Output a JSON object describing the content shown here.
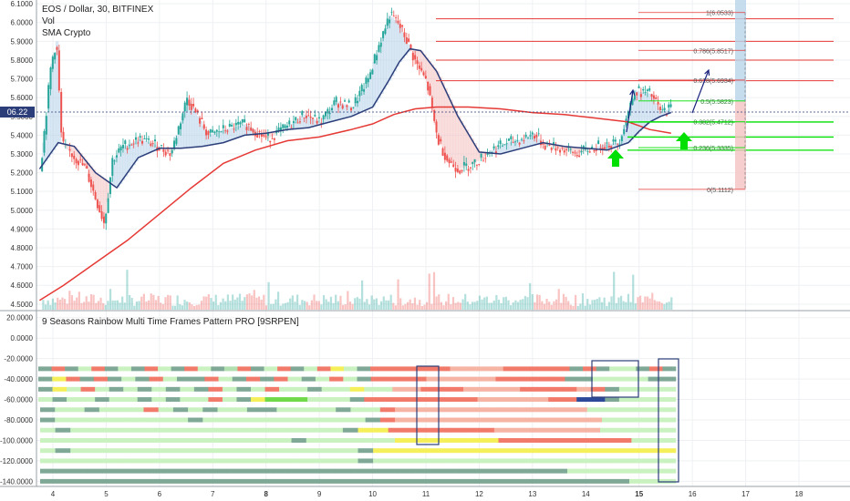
{
  "legend": {
    "symbol": "EOS / Dollar, 30, BITFINEX",
    "vol": "Vol",
    "sma": "SMA Crypto"
  },
  "indicator": {
    "title": "9 Seasons Rainbow Multi Time Frames Pattern PRO [9SRPEN]"
  },
  "price_tag": "06.22",
  "colors": {
    "up": "#26a69a",
    "down": "#ef5350",
    "sma_fast": "#2c3e7a",
    "sma_slow": "#e53935",
    "fib": "#e53935",
    "fib_green": "#00e000",
    "arrow_green": "#00e000",
    "arrow_navy": "#1a237e",
    "band_blue": "#b8d4ea",
    "band_pink": "#f4c2c2"
  },
  "chart_data": [
    {
      "type": "candlestick",
      "title": "EOS / Dollar, 30, BITFINEX",
      "x_ticks": [
        "4",
        "5",
        "6",
        "7",
        "8",
        "9",
        "10",
        "11",
        "12",
        "13",
        "14",
        "15",
        "16",
        "17",
        "18"
      ],
      "y_ticks": [
        "6.1000",
        "6.0000",
        "5.9000",
        "5.8000",
        "5.7000",
        "5.6000",
        "5.5000",
        "5.4000",
        "5.3000",
        "5.2000",
        "5.1000",
        "5.0000",
        "4.9000",
        "4.8000",
        "4.7000",
        "4.6000",
        "4.5000"
      ],
      "ylim": [
        4.47,
        6.12
      ],
      "xlim": [
        3.75,
        18.6
      ],
      "series": [
        {
          "name": "",
          "kind": "close",
          "x": [
            3.75,
            3.95,
            4.05,
            4.15,
            4.3,
            4.6,
            4.8,
            4.95,
            5.1,
            5.3,
            5.6,
            5.9,
            6.2,
            6.5,
            6.9,
            7.2,
            7.6,
            8.0,
            8.3,
            8.7,
            9.0,
            9.3,
            9.6,
            9.9,
            10.1,
            10.3,
            10.45,
            10.6,
            10.8,
            11.0,
            11.2,
            11.4,
            11.6,
            11.9,
            12.2,
            12.5,
            12.8,
            13.0,
            13.2,
            13.5,
            13.8,
            14.0,
            14.3,
            14.6,
            14.9,
            15.0,
            15.2,
            15.4,
            15.6
          ],
          "y": [
            5.22,
            5.78,
            5.9,
            5.35,
            5.31,
            5.22,
            5.05,
            4.93,
            5.27,
            5.34,
            5.38,
            5.35,
            5.3,
            5.6,
            5.4,
            5.43,
            5.46,
            5.38,
            5.43,
            5.51,
            5.47,
            5.58,
            5.55,
            5.7,
            5.88,
            6.04,
            6.0,
            5.92,
            5.78,
            5.68,
            5.38,
            5.26,
            5.22,
            5.25,
            5.32,
            5.36,
            5.38,
            5.41,
            5.35,
            5.33,
            5.3,
            5.32,
            5.35,
            5.36,
            5.64,
            5.63,
            5.62,
            5.52,
            5.55
          ]
        },
        {
          "name": "",
          "kind": "sma_fast",
          "x": [
            3.75,
            4.1,
            4.4,
            4.8,
            5.2,
            5.6,
            6.0,
            6.4,
            6.8,
            7.2,
            7.6,
            8.0,
            8.4,
            8.8,
            9.2,
            9.6,
            10.0,
            10.3,
            10.5,
            10.7,
            10.9,
            11.2,
            11.6,
            12.0,
            12.4,
            12.8,
            13.2,
            13.6,
            14.0,
            14.4,
            14.8,
            15.0,
            15.2,
            15.4,
            15.6
          ],
          "y": [
            5.22,
            5.36,
            5.34,
            5.2,
            5.12,
            5.28,
            5.33,
            5.33,
            5.34,
            5.36,
            5.4,
            5.41,
            5.43,
            5.44,
            5.47,
            5.5,
            5.55,
            5.69,
            5.79,
            5.86,
            5.85,
            5.74,
            5.5,
            5.31,
            5.3,
            5.33,
            5.36,
            5.34,
            5.33,
            5.32,
            5.36,
            5.42,
            5.47,
            5.5,
            5.52
          ]
        },
        {
          "name": "",
          "kind": "sma_slow",
          "x": [
            3.75,
            4.2,
            4.8,
            5.4,
            6.0,
            6.6,
            7.2,
            7.8,
            8.4,
            9.0,
            9.6,
            10.0,
            10.4,
            10.8,
            11.2,
            11.8,
            12.4,
            13.0,
            13.6,
            14.2,
            14.8,
            15.2,
            15.6
          ],
          "y": [
            4.52,
            4.6,
            4.72,
            4.84,
            4.98,
            5.12,
            5.25,
            5.32,
            5.37,
            5.39,
            5.43,
            5.46,
            5.51,
            5.54,
            5.55,
            5.55,
            5.54,
            5.52,
            5.51,
            5.49,
            5.47,
            5.43,
            5.41
          ]
        }
      ],
      "fib_levels": [
        {
          "label": "1(6.0533)",
          "value": 6.0533
        },
        {
          "label": "0.786(5.8517)",
          "value": 5.8517
        },
        {
          "label": "0.618(5.6934)",
          "value": 5.6934
        },
        {
          "label": "0.5(5.5823)",
          "value": 5.5823
        },
        {
          "label": "0.382(5.4712)",
          "value": 5.4712
        },
        {
          "label": "0.236(5.3335)",
          "value": 5.3335
        },
        {
          "label": "0(5.1112)",
          "value": 5.1112
        }
      ],
      "hlines_red": [
        6.02,
        5.9,
        5.8,
        5.69
      ],
      "hlines_green": [
        5.47,
        5.39,
        5.32
      ]
    },
    {
      "type": "heatmap",
      "title": "9 Seasons Rainbow Multi Time Frames Pattern PRO [9SRPEN]",
      "y_ticks": [
        "20.0000",
        "0.0000",
        "-20.0000",
        "-40.0000",
        "-60.0000",
        "-80.0000",
        "-100.0000",
        "-120.0000",
        "-140.0000"
      ],
      "ylim": [
        -145,
        26
      ],
      "rows": [
        -30,
        -40,
        -50,
        -60,
        -70,
        -80,
        -90,
        -100,
        -110,
        -120,
        -130,
        -140
      ],
      "palette": {
        "G": "#7fa897",
        "L": "#c9f2c0",
        "S": "#b2dfb0",
        "R": "#f27a6a",
        "P": "#f5b4a4",
        "Y": "#f5ef5a",
        "B": "#2d4a9a",
        "K": "#6fd94a"
      },
      "row_segments": [
        [
          "GRGLRGLGRLGRLGSRGLRGLRYLGRRRRRRPPPPRRRRRGRGLLGRG",
          "y"
        ],
        [
          "GYRGRGLGRLGGRLGRGRLGLRLGRRRRPPPPPRRRRRGGLLLLGG",
          "y"
        ],
        [
          "GYLRLGLGLGLGRLGLRLLGLLYLLPPRRRPPPPRRRRPRGLLLL",
          "y"
        ],
        [
          "LGLLGLLGLGLLRLGYKKKLLLGRRRRRRRRPPPPPRRBBGLLLL",
          "y"
        ],
        [
          "GLLGLLLRLGLGLLGGLLLLGLLRPPPPPPPPPPPPPLLLLLL",
          "y"
        ],
        [
          "GLLLLLLLLLGLLLLLLLLLLLGRPPPPPPPPPPPPPPLLLLL",
          "y"
        ],
        [
          "LGLLLLLLLLLLLLLLLLLLGYYRRRRRRRPPPPPPPLLLLL",
          "y"
        ],
        [
          "LLLLLLLLLLLLLLLLLGLLLLLLYYYYYYYRRRRRRRRRLLL",
          "y"
        ],
        [
          "LGLLLLLLLLLLLLLLLLLLLGYYYYYYYYYYYYYYYYYYYY",
          "y"
        ],
        [
          "LLLLLLLLLLLLLLLLLLLLLGLLLLLLLLLLLLLLLLLLLL",
          "y"
        ],
        [
          "GGGGGGGGGGGGGGGGGGGGGGGGGGGGGGGGGGLLLLLLL",
          "y"
        ],
        [
          "GGGGGGGGGGGGGGGGGGGGGGGGGGGGGGGGGGGGGGLLL",
          "y"
        ]
      ]
    }
  ]
}
